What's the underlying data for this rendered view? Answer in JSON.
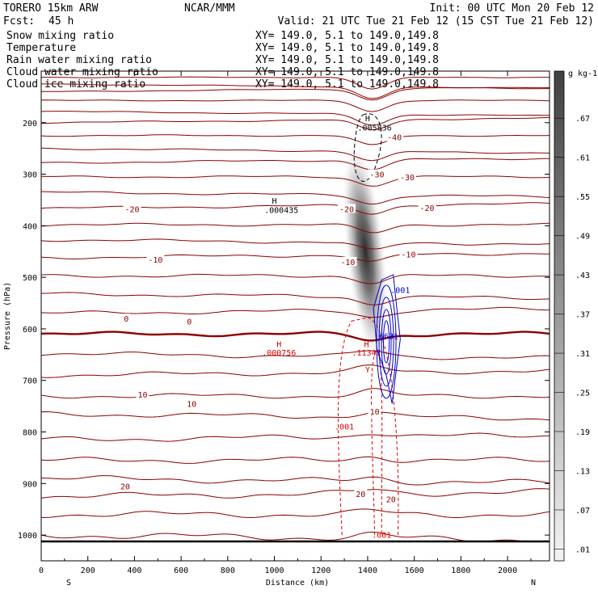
{
  "header": {
    "model": "TORERO 15km ARW",
    "org": "NCAR/MMM",
    "init": "Init: 00 UTC Mon 20 Feb 12",
    "fcst_label": "Fcst:",
    "fcst_value": "45 h",
    "valid": "Valid: 21 UTC Tue 21 Feb 12 (15 CST Tue 21 Feb 12)"
  },
  "fields": [
    {
      "name": "Snow mixing ratio",
      "range": "XY= 149.0,  5.1 to 149.0,149.8",
      "color": "#000000"
    },
    {
      "name": "Temperature",
      "range": "XY= 149.0,  5.1 to 149.0,149.8",
      "color": "#8b0000"
    },
    {
      "name": "Rain water mixing ratio",
      "range": "XY= 149.0,  5.1 to 149.0,149.8",
      "color": "#e00000"
    },
    {
      "name": "Cloud water mixing ratio",
      "range": "XY= 149.0,  5.1 to 149.0,149.8",
      "color": "#0000cc"
    },
    {
      "name": "Cloud ice mixing ratio",
      "range": "XY= 149.0,  5.1 to 149.0,149.8",
      "color": "#000000"
    }
  ],
  "chart_data": {
    "type": "cross-section contour",
    "xlabel": "Distance (km)",
    "ylabel": "Pressure (hPa)",
    "xlim": [
      0,
      2180
    ],
    "ylim": [
      1050,
      100
    ],
    "x_ticks": [
      0,
      200,
      400,
      600,
      800,
      1000,
      1200,
      1400,
      1600,
      1800,
      2000
    ],
    "y_ticks": [
      200,
      300,
      400,
      500,
      600,
      700,
      800,
      900,
      1000
    ],
    "x_end_labels": {
      "left": "S",
      "right": "N"
    },
    "temperature": {
      "color": "#8b0000",
      "interval": 5,
      "isotherm_pressures_at_x0": [
        1000,
        960,
        925,
        890,
        855,
        815,
        765,
        730,
        690,
        648,
        610,
        570,
        532,
        497,
        462,
        427,
        398,
        366,
        335,
        305,
        278,
        250,
        225,
        200,
        178,
        157,
        140,
        125,
        112
      ],
      "labels": [
        {
          "text": "-40",
          "x": 1515,
          "p": 228
        },
        {
          "text": "-30",
          "x": 1440,
          "p": 300
        },
        {
          "text": "-30",
          "x": 1570,
          "p": 305
        },
        {
          "text": "-20",
          "x": 390,
          "p": 367
        },
        {
          "text": "-20",
          "x": 1310,
          "p": 367
        },
        {
          "text": "-20",
          "x": 1655,
          "p": 365
        },
        {
          "text": "-10",
          "x": 490,
          "p": 465
        },
        {
          "text": "-10",
          "x": 1315,
          "p": 470
        },
        {
          "text": "-10",
          "x": 1575,
          "p": 455
        },
        {
          "text": "0",
          "x": 365,
          "p": 580
        },
        {
          "text": "0",
          "x": 635,
          "p": 585
        },
        {
          "text": "10",
          "x": 435,
          "p": 727
        },
        {
          "text": "10",
          "x": 645,
          "p": 745
        },
        {
          "text": "10",
          "x": 1430,
          "p": 760
        },
        {
          "text": "20",
          "x": 360,
          "p": 905
        },
        {
          "text": "20",
          "x": 1370,
          "p": 920
        },
        {
          "text": "20",
          "x": 1500,
          "p": 930
        }
      ]
    },
    "snow_shading": {
      "unit": "g kg-1",
      "colorbar_labels": [
        ".67",
        ".61",
        ".55",
        ".49",
        ".43",
        ".37",
        ".31",
        ".25",
        ".19",
        ".13",
        ".07",
        ".01"
      ],
      "max_location": {
        "x": 1390,
        "p": 450
      }
    },
    "cloud_ice": {
      "color": "#000000",
      "max_label": "H",
      "max_value": ".005836",
      "max_location": {
        "x": 1400,
        "p": 205
      }
    },
    "snow_max": {
      "label": "H",
      "value": ".000435",
      "location": {
        "x": 1030,
        "p": 365
      }
    },
    "rain_water": {
      "color": "#e00000",
      "contour_labels": [
        ".001",
        ".001"
      ],
      "maxima": [
        {
          "label": "H",
          "value": ".000756",
          "x": 1020,
          "p": 650
        },
        {
          "label": "H",
          "value": ".11347",
          "x": 1395,
          "p": 650
        }
      ],
      "extra_mark": "Y"
    },
    "cloud_water": {
      "color": "#0000cc",
      "contour_labels": [
        ".001"
      ],
      "max_value": ".6631",
      "max_location": {
        "x": 1490,
        "p": 620
      }
    }
  }
}
